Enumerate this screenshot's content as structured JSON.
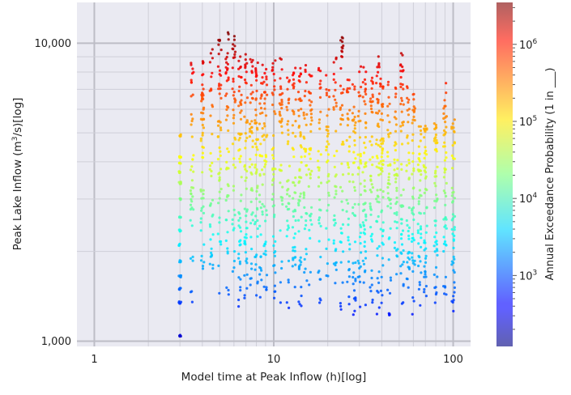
{
  "chart_data": {
    "type": "scatter",
    "title": "",
    "xlabel": "Model time at Peak Inflow (h)[log]",
    "ylabel_prefix": "Peak Lake Inflow (m",
    "ylabel_sup": "3",
    "ylabel_suffix": "/s)[log]",
    "x_scale": "log",
    "y_scale": "log",
    "xlim": [
      0.8,
      125
    ],
    "ylim": [
      960,
      13700
    ],
    "x_ticks": [
      {
        "value": 1,
        "label": "1"
      },
      {
        "value": 10,
        "label": "10"
      },
      {
        "value": 100,
        "label": "100"
      }
    ],
    "y_ticks": [
      {
        "value": 1000,
        "label": "1,000"
      },
      {
        "value": 10000,
        "label": "10,000"
      }
    ],
    "grid": true,
    "background": "#eaeaf2",
    "colormap": "jet",
    "colorbar": {
      "label": "Annual Exceedance Probability (1 in ___)",
      "scale": "log",
      "range": [
        120,
        3500000
      ],
      "tick_labels": [
        {
          "value": 1000,
          "base": "10",
          "exp": "3"
        },
        {
          "value": 10000,
          "base": "10",
          "exp": "4"
        },
        {
          "value": 100000,
          "base": "10",
          "exp": "5"
        },
        {
          "value": 1000000,
          "base": "10",
          "exp": "6"
        }
      ]
    },
    "series": [
      {
        "description_free": true,
        "x_columns": [
          3.0,
          3.5,
          4.0,
          4.5,
          5.0,
          5.5,
          6.0,
          6.5,
          7.0,
          7.5,
          8.0,
          8.5,
          9.0,
          10.0,
          11.0,
          12.0,
          13.0,
          14.0,
          15.0,
          16.0,
          18.0,
          20.0,
          22.0,
          24.0,
          26.0,
          28.0,
          30.0,
          32.0,
          35.0,
          38.0,
          40.0,
          44.0,
          48.0,
          52.0,
          56.0,
          60.0,
          65.0,
          70.0,
          80.0,
          90.0,
          100.0
        ],
        "y_min": [
          1040,
          1300,
          1600,
          1500,
          1400,
          1350,
          1300,
          1300,
          1300,
          1350,
          1400,
          1350,
          1300,
          1300,
          1250,
          1250,
          1300,
          1300,
          1350,
          1300,
          1250,
          1250,
          1300,
          1250,
          1250,
          1200,
          1250,
          1300,
          1200,
          1200,
          1300,
          1200,
          1300,
          1250,
          1250,
          1200,
          1300,
          1300,
          1250,
          1300,
          1200
        ],
        "y_max": [
          4900,
          8800,
          8900,
          9800,
          10900,
          10900,
          10900,
          10000,
          9500,
          9200,
          9000,
          9000,
          8900,
          8800,
          8900,
          8700,
          8500,
          8300,
          8800,
          8500,
          8400,
          8300,
          9200,
          10500,
          8100,
          7500,
          8800,
          8700,
          7900,
          9700,
          7600,
          7500,
          7300,
          9300,
          7400,
          7100,
          5500,
          5300,
          5400,
          7400,
          5700
        ]
      }
    ]
  }
}
